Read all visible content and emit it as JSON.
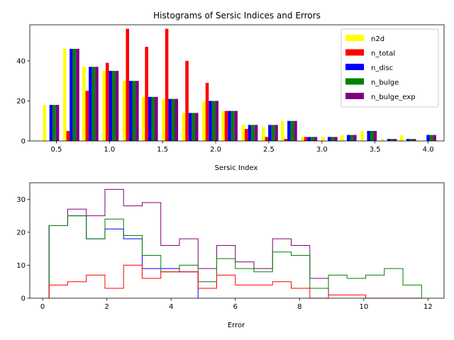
{
  "chart_data": [
    {
      "type": "bar",
      "title": "Histograms of Sersic Indices and Errors",
      "xlabel": "Sersic Index",
      "ylabel": "",
      "xlim": [
        0.25,
        4.15
      ],
      "ylim": [
        0,
        58
      ],
      "xticks": [
        "0.5",
        "1.0",
        "1.5",
        "2.0",
        "2.5",
        "3.0",
        "3.5",
        "4.0"
      ],
      "yticks": [
        "0",
        "20",
        "40"
      ],
      "legend_position": "top-right",
      "bin_centers": [
        0.45,
        0.64,
        0.82,
        1.01,
        1.2,
        1.38,
        1.57,
        1.76,
        1.95,
        2.13,
        2.32,
        2.51,
        2.69,
        2.88,
        3.07,
        3.25,
        3.44,
        3.63,
        3.81,
        4.0
      ],
      "series": [
        {
          "name": "n2d",
          "color": "#ffff00",
          "values": [
            18,
            46,
            37,
            35,
            30,
            22,
            21,
            14,
            20,
            15,
            8,
            7,
            10,
            2,
            2,
            3,
            5,
            1,
            3,
            0
          ]
        },
        {
          "name": "n_total",
          "color": "#ff0000",
          "values": [
            0,
            5,
            25,
            39,
            56,
            47,
            56,
            40,
            29,
            15,
            6,
            2,
            1,
            2,
            0,
            0,
            0,
            0,
            0,
            0
          ]
        },
        {
          "name": "n_disc",
          "color": "#0000ff",
          "values": [
            18,
            46,
            37,
            35,
            30,
            22,
            21,
            14,
            20,
            15,
            8,
            8,
            10,
            2,
            2,
            3,
            5,
            1,
            1,
            3
          ]
        },
        {
          "name": "n_bulge",
          "color": "#008000",
          "values": [
            18,
            46,
            37,
            35,
            30,
            22,
            21,
            14,
            20,
            15,
            8,
            8,
            10,
            2,
            2,
            3,
            5,
            1,
            1,
            3
          ]
        },
        {
          "name": "n_bulge_exp",
          "color": "#800080",
          "values": [
            18,
            46,
            37,
            35,
            30,
            22,
            21,
            14,
            20,
            15,
            8,
            8,
            10,
            2,
            2,
            3,
            5,
            1,
            1,
            3
          ]
        }
      ]
    },
    {
      "type": "line",
      "subtype": "step-histogram",
      "title": "",
      "xlabel": "Error",
      "ylabel": "",
      "xlim": [
        -0.4,
        12.5
      ],
      "ylim": [
        0,
        35
      ],
      "xticks": [
        "0",
        "2",
        "4",
        "6",
        "8",
        "10",
        "12"
      ],
      "yticks": [
        "0",
        "10",
        "20",
        "30"
      ],
      "series": [
        {
          "color": "#0000ff",
          "edges": [
            0.2,
            0.78,
            1.36,
            1.94,
            2.52,
            3.1,
            3.68,
            4.26,
            4.84
          ],
          "values": [
            22,
            25,
            18,
            21,
            18,
            9,
            9,
            8
          ]
        },
        {
          "color": "#800080",
          "edges": [
            0.2,
            0.78,
            1.36,
            1.94,
            2.52,
            3.1,
            3.68,
            4.26,
            4.84,
            5.42,
            6.0,
            6.58,
            7.16,
            7.74,
            8.32,
            8.9
          ],
          "values": [
            22,
            27,
            25,
            33,
            28,
            29,
            16,
            18,
            9,
            16,
            11,
            9,
            18,
            16,
            6
          ]
        },
        {
          "color": "#008000",
          "edges": [
            0.2,
            0.78,
            1.36,
            1.94,
            2.52,
            3.1,
            3.68,
            4.26,
            4.84,
            5.42,
            6.0,
            6.58,
            7.16,
            7.74,
            8.32,
            8.9,
            9.48,
            10.06,
            10.64,
            11.22,
            11.8
          ],
          "values": [
            22,
            25,
            18,
            24,
            19,
            13,
            8,
            10,
            5,
            12,
            9,
            8,
            14,
            13,
            3,
            7,
            6,
            7,
            9,
            4
          ]
        },
        {
          "color": "#ff0000",
          "edges": [
            0.2,
            0.78,
            1.36,
            1.94,
            2.52,
            3.1,
            3.68,
            4.26,
            4.84,
            5.42,
            6.0,
            6.58,
            7.16,
            7.74,
            8.32,
            8.9,
            9.48,
            10.06,
            10.64,
            11.22,
            11.8
          ],
          "values": [
            4,
            5,
            7,
            3,
            10,
            6,
            8,
            8,
            3,
            7,
            4,
            4,
            5,
            3,
            0,
            1,
            1,
            0,
            0,
            0
          ]
        }
      ]
    }
  ]
}
